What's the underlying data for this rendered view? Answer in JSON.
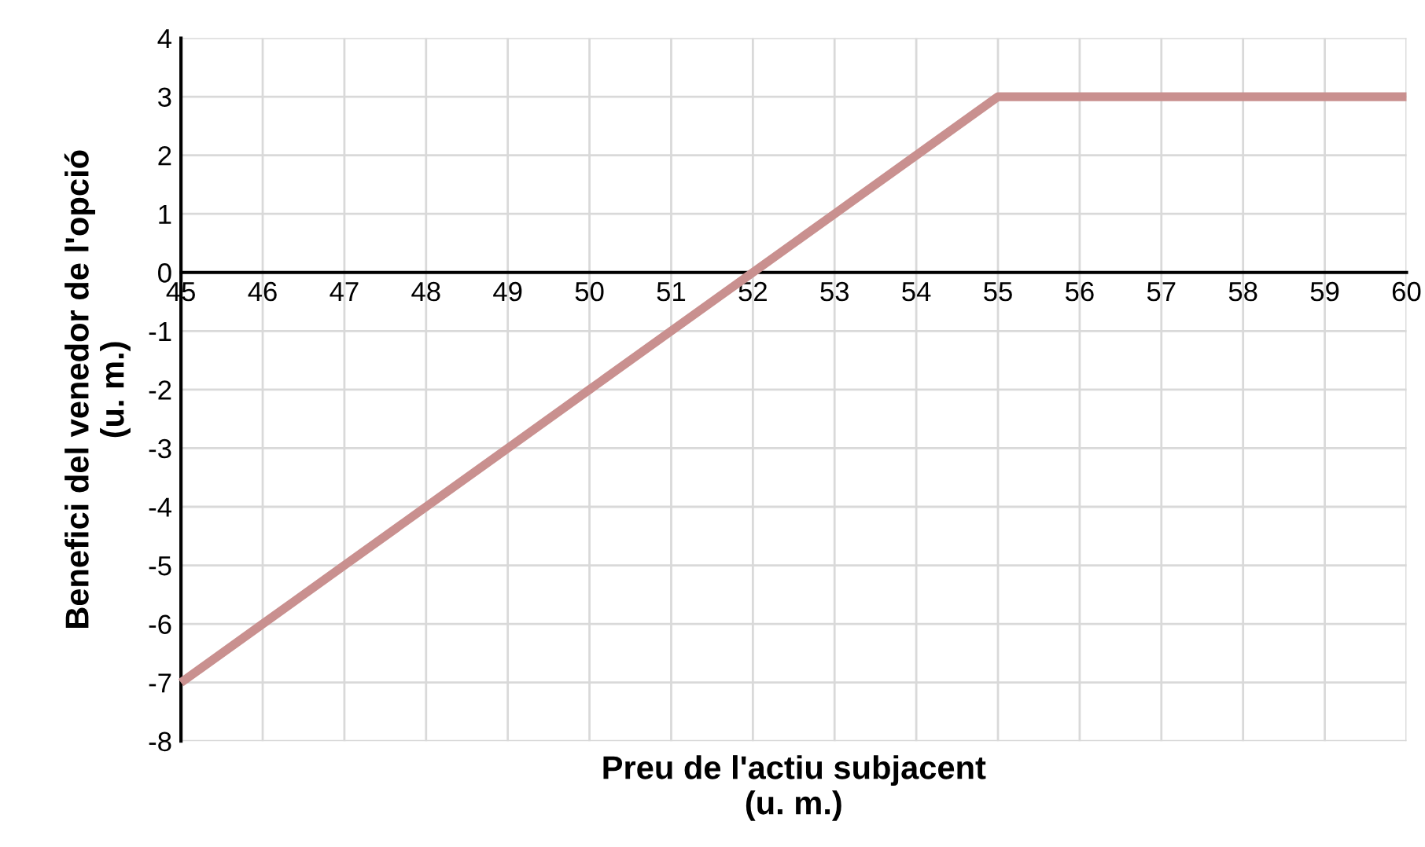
{
  "chart_data": {
    "type": "line",
    "xlabel": "Preu de l'actiu subjacent\n(u. m.)",
    "ylabel": "Benefici del venedor de l'opció\n(u. m.)",
    "x": [
      45,
      46,
      47,
      48,
      49,
      50,
      51,
      52,
      53,
      54,
      55,
      56,
      57,
      58,
      59,
      60
    ],
    "series": [
      {
        "color": "#c9908f",
        "values": [
          -7,
          -6,
          -5,
          -4,
          -3,
          -2,
          -1,
          0,
          1,
          2,
          3,
          3,
          3,
          3,
          3,
          3
        ]
      }
    ],
    "xlim": [
      45,
      60
    ],
    "xticks": [
      45,
      46,
      47,
      48,
      49,
      50,
      51,
      52,
      53,
      54,
      55,
      56,
      57,
      58,
      59,
      60
    ],
    "ylim": [
      -8,
      4
    ],
    "yticks": [
      -8,
      -7,
      -6,
      -5,
      -4,
      -3,
      -2,
      -1,
      0,
      1,
      2,
      3,
      4
    ],
    "grid": true,
    "marker": "none",
    "line_style": "solid"
  }
}
